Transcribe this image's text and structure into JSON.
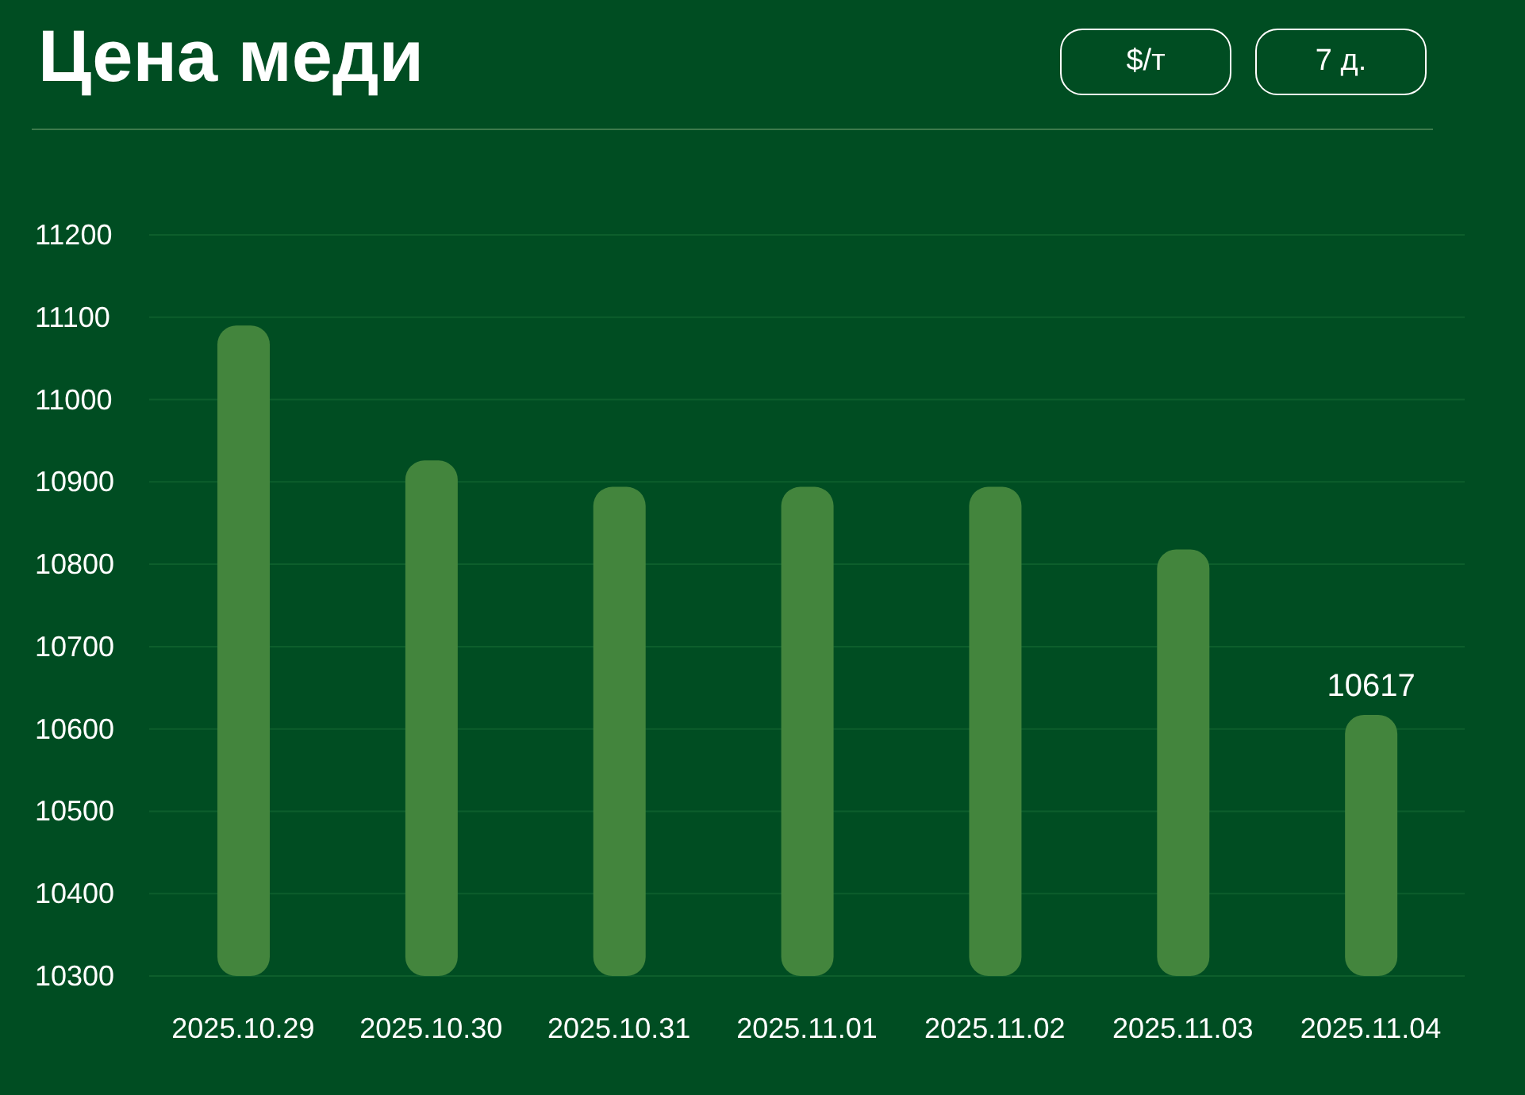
{
  "chart_data": {
    "type": "bar",
    "title": "Цена меди",
    "annotations": [
      "$/т",
      "7 д."
    ],
    "categories": [
      "2025.10.29",
      "2025.10.30",
      "2025.10.31",
      "2025.11.01",
      "2025.11.02",
      "2025.11.03",
      "2025.11.04"
    ],
    "values": [
      11090,
      10926,
      10894,
      10894,
      10894,
      10818,
      10617
    ],
    "color": "#43853d",
    "value_labels": [
      null,
      null,
      null,
      null,
      null,
      null,
      "10617"
    ],
    "ylim": [
      10300,
      11200
    ],
    "yticks": [
      10300,
      10400,
      10500,
      10600,
      10700,
      10800,
      10900,
      11000,
      11100,
      11200
    ],
    "grid": "y",
    "legend": false
  }
}
